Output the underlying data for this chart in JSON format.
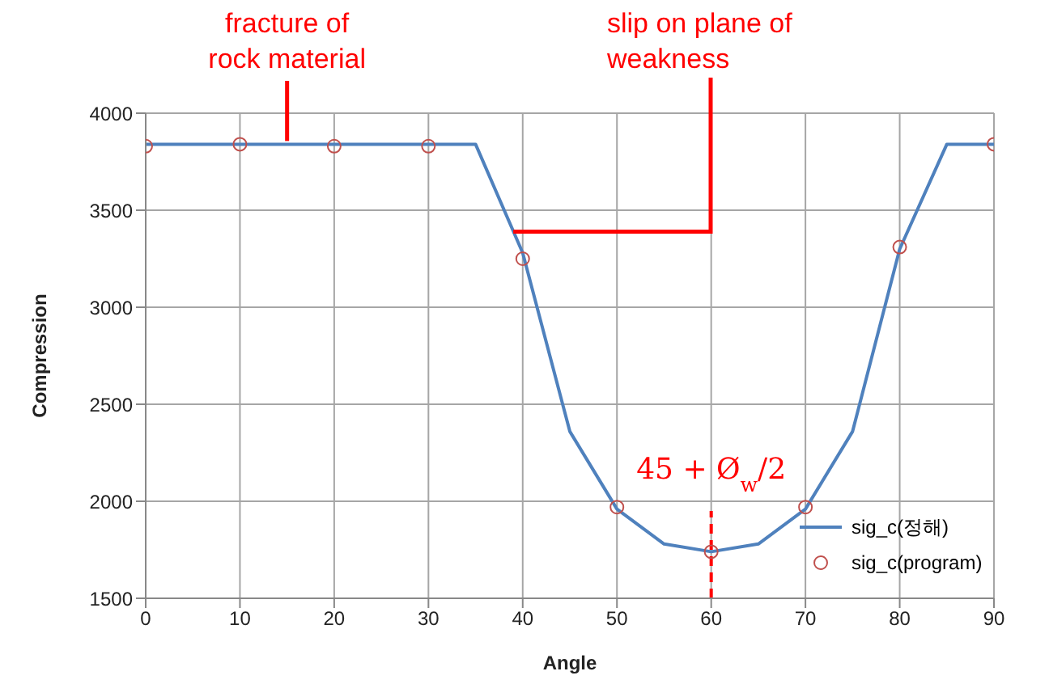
{
  "chart_data": {
    "type": "line",
    "xlabel": "Angle",
    "ylabel": "Compression",
    "xlim": [
      0,
      90
    ],
    "xticks": [
      0,
      10,
      20,
      30,
      40,
      50,
      60,
      70,
      80,
      90
    ],
    "ylim": [
      1500,
      4000
    ],
    "yticks": [
      1500,
      2000,
      2500,
      3000,
      3500,
      4000
    ],
    "grid": true,
    "legend": "bottom right",
    "series": [
      {
        "name": "sig_c(정해)",
        "type": "line",
        "color": "#4f81bd",
        "marker": "none",
        "x": [
          0,
          5,
          10,
          15,
          20,
          25,
          30,
          35,
          40,
          45,
          50,
          55,
          60,
          65,
          70,
          75,
          80,
          85,
          90
        ],
        "values": [
          3840,
          3840,
          3840,
          3840,
          3840,
          3840,
          3840,
          3840,
          3280,
          2360,
          1960,
          1780,
          1740,
          1780,
          1960,
          2360,
          3300,
          3840,
          3840
        ]
      },
      {
        "name": "sig_c(program)",
        "type": "scatter",
        "color": "#c0504d",
        "marker": "circle",
        "x": [
          0,
          10,
          20,
          30,
          40,
          50,
          60,
          70,
          80,
          90
        ],
        "values": [
          3830,
          3840,
          3830,
          3830,
          3250,
          1970,
          1740,
          1970,
          3310,
          3840
        ]
      }
    ],
    "ref_lines": [
      {
        "axis": "x",
        "value": 60,
        "label": "45 + Ø$_{w}$/2",
        "color": "#ff0000",
        "line_style": "dashed"
      }
    ],
    "annotations": [
      {
        "text": "fracture of rock material",
        "x": 15,
        "y": 3840
      },
      {
        "text": "slip on plane of weakness",
        "x": 39,
        "y": 3390
      }
    ]
  }
}
